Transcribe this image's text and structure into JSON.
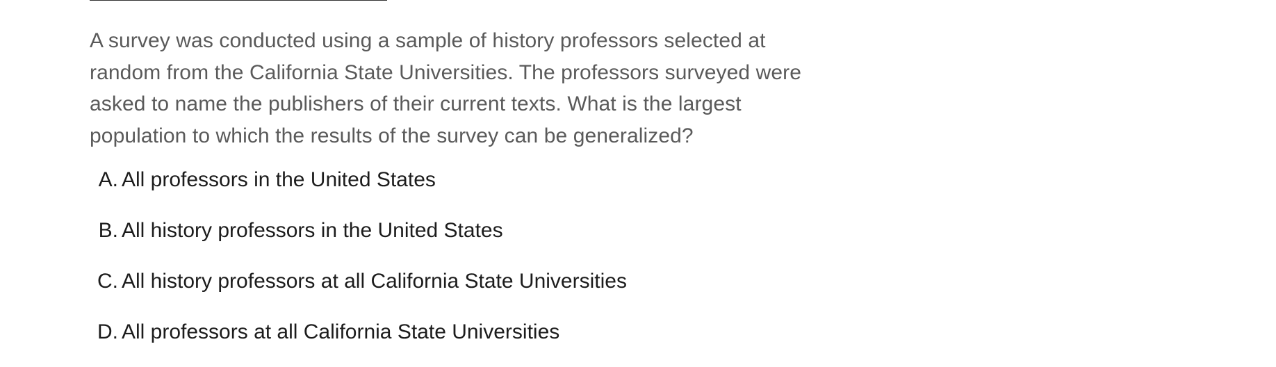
{
  "question": {
    "text": "A survey was conducted using a sample of history professors selected at random from the California State Universities. The professors surveyed were asked to name the publishers of their current texts. What is the largest population to which the results of the survey can be generalized?"
  },
  "options": [
    {
      "letter": "A.",
      "text": "All professors in the United States"
    },
    {
      "letter": "B.",
      "text": "All history professors in the United States"
    },
    {
      "letter": "C.",
      "text": "All history professors at all California State Universities"
    },
    {
      "letter": "D.",
      "text": "All professors at all California State Universities"
    }
  ],
  "colors": {
    "question_text": "#5a5a5a",
    "option_text": "#1c1c1c",
    "background": "#ffffff"
  }
}
